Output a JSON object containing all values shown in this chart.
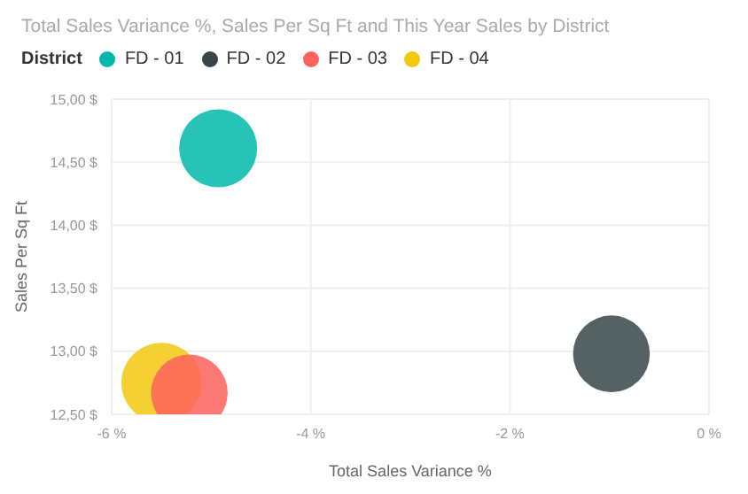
{
  "chart_data": {
    "type": "bubble",
    "title": "Total Sales Variance %, Sales Per Sq Ft and This Year Sales by District",
    "xlabel": "Total Sales Variance %",
    "ylabel": "Sales Per Sq Ft",
    "legend_title": "District",
    "legend": "top left",
    "grid": true,
    "xlim": [
      -6,
      0
    ],
    "xticks": [
      {
        "value": -6,
        "label": "-6 %"
      },
      {
        "value": -4,
        "label": "-4 %"
      },
      {
        "value": -2,
        "label": "-2 %"
      },
      {
        "value": 0,
        "label": "0 %"
      }
    ],
    "ylim": [
      12.5,
      15
    ],
    "yticks": [
      {
        "value": 12.5,
        "label": "12,50 $"
      },
      {
        "value": 13,
        "label": "13,00 $"
      },
      {
        "value": 13.5,
        "label": "13,50 $"
      },
      {
        "value": 14,
        "label": "14,00 $"
      },
      {
        "value": 14.5,
        "label": "14,50 $"
      },
      {
        "value": 15,
        "label": "15,00 $"
      }
    ],
    "series": [
      {
        "name": "FD - 01",
        "color": "#01b8aa",
        "x": [
          -4.93
        ],
        "values": [
          14.61
        ],
        "sizes": [
          0.95
        ]
      },
      {
        "name": "FD - 02",
        "color": "#374649",
        "x": [
          -0.98
        ],
        "values": [
          12.98
        ],
        "sizes": [
          0.92
        ]
      },
      {
        "name": "FD - 03",
        "color": "#fd625e",
        "x": [
          -5.22
        ],
        "values": [
          12.67
        ],
        "sizes": [
          0.92
        ]
      },
      {
        "name": "FD - 04",
        "color": "#f2c80f",
        "x": [
          -5.5
        ],
        "values": [
          12.75
        ],
        "sizes": [
          1
        ]
      }
    ]
  }
}
